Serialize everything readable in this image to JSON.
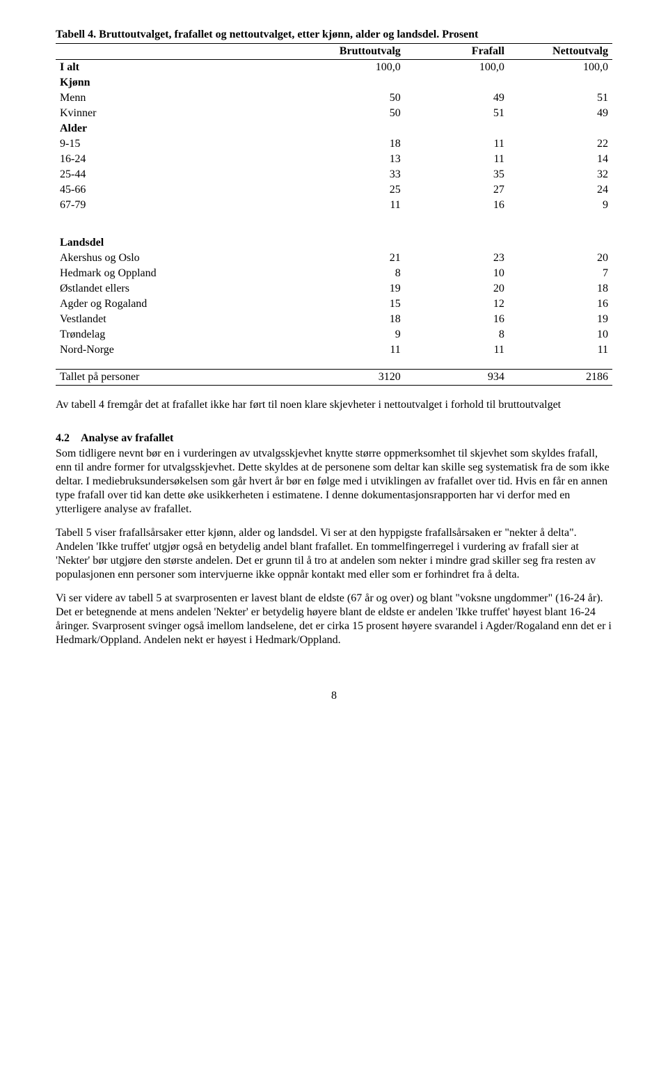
{
  "table": {
    "caption": "Tabell 4. Bruttoutvalget, frafallet og nettoutvalget, etter kjønn, alder og landsdel. Prosent",
    "columns": [
      "",
      "Bruttoutvalg",
      "Frafall",
      "Nettoutvalg"
    ],
    "rows": [
      {
        "type": "data",
        "bold_label": true,
        "label": "I alt",
        "v": [
          "100,0",
          "100,0",
          "100,0"
        ]
      },
      {
        "type": "section",
        "label": "Kjønn"
      },
      {
        "type": "data",
        "label": "Menn",
        "v": [
          "50",
          "49",
          "51"
        ]
      },
      {
        "type": "data",
        "label": "Kvinner",
        "v": [
          "50",
          "51",
          "49"
        ]
      },
      {
        "type": "section",
        "label": "Alder"
      },
      {
        "type": "data",
        "label": "9-15",
        "v": [
          "18",
          "11",
          "22"
        ]
      },
      {
        "type": "data",
        "label": "16-24",
        "v": [
          "13",
          "11",
          "14"
        ]
      },
      {
        "type": "data",
        "label": "25-44",
        "v": [
          "33",
          "35",
          "32"
        ]
      },
      {
        "type": "data",
        "label": "45-66",
        "v": [
          "25",
          "27",
          "24"
        ]
      },
      {
        "type": "data",
        "label": "67-79",
        "v": [
          "11",
          "16",
          "9"
        ]
      },
      {
        "type": "spacer"
      },
      {
        "type": "spacer"
      },
      {
        "type": "section",
        "label": "Landsdel"
      },
      {
        "type": "data",
        "label": "Akershus og Oslo",
        "v": [
          "21",
          "23",
          "20"
        ]
      },
      {
        "type": "data",
        "label": "Hedmark og Oppland",
        "v": [
          "8",
          "10",
          "7"
        ]
      },
      {
        "type": "data",
        "label": "Østlandet ellers",
        "v": [
          "19",
          "20",
          "18"
        ]
      },
      {
        "type": "data",
        "label": "Agder og Rogaland",
        "v": [
          "15",
          "12",
          "16"
        ]
      },
      {
        "type": "data",
        "label": "Vestlandet",
        "v": [
          "18",
          "16",
          "19"
        ]
      },
      {
        "type": "data",
        "label": "Trøndelag",
        "v": [
          "9",
          "8",
          "10"
        ]
      },
      {
        "type": "data",
        "label": "Nord-Norge",
        "v": [
          "11",
          "11",
          "11"
        ]
      },
      {
        "type": "spacer"
      },
      {
        "type": "totals",
        "label": "Tallet på personer",
        "v": [
          "3120",
          "934",
          "2186"
        ]
      }
    ]
  },
  "para1": "Av tabell 4 fremgår det at frafallet ikke har ført til noen klare skjevheter i nettoutvalget i forhold til bruttoutvalget",
  "heading": {
    "num": "4.2",
    "title": "Analyse av frafallet"
  },
  "para2": "Som tidligere nevnt bør en i vurderingen av utvalgsskjevhet knytte større oppmerksomhet til skjevhet som skyldes frafall, enn til andre former for utvalgsskjevhet. Dette skyldes at de personene som deltar kan skille seg systematisk fra de som ikke deltar. I mediebruksundersøkelsen som går hvert år bør en følge med i utviklingen av frafallet over tid. Hvis en får en annen type frafall over tid kan dette øke usikkerheten i estimatene. I denne dokumentasjonsrapporten har vi derfor med en ytterligere analyse av frafallet.",
  "para3": "Tabell 5 viser frafallsårsaker etter kjønn, alder og landsdel. Vi ser at den hyppigste frafallsårsaken er \"nekter å delta\". Andelen 'Ikke truffet' utgjør også en betydelig andel blant frafallet. En tommelfingerregel i vurdering av frafall sier at 'Nekter' bør utgjøre den største andelen. Det er grunn til å tro at andelen som nekter i mindre grad skiller seg fra resten av populasjonen enn personer som intervjuerne ikke oppnår kontakt med eller som er forhindret fra å delta.",
  "para4": "Vi ser videre av tabell 5 at svarprosenten er lavest blant de eldste (67 år og over) og blant \"voksne ungdommer\" (16-24 år). Det er betegnende at mens andelen 'Nekter' er betydelig høyere blant de eldste er andelen 'Ikke truffet' høyest blant 16-24 åringer. Svarprosent svinger også imellom landselene, det er cirka  15 prosent høyere svarandel i Agder/Rogaland enn det er i Hedmark/Oppland. Andelen nekt er høyest i Hedmark/Oppland.",
  "pageNumber": "8"
}
